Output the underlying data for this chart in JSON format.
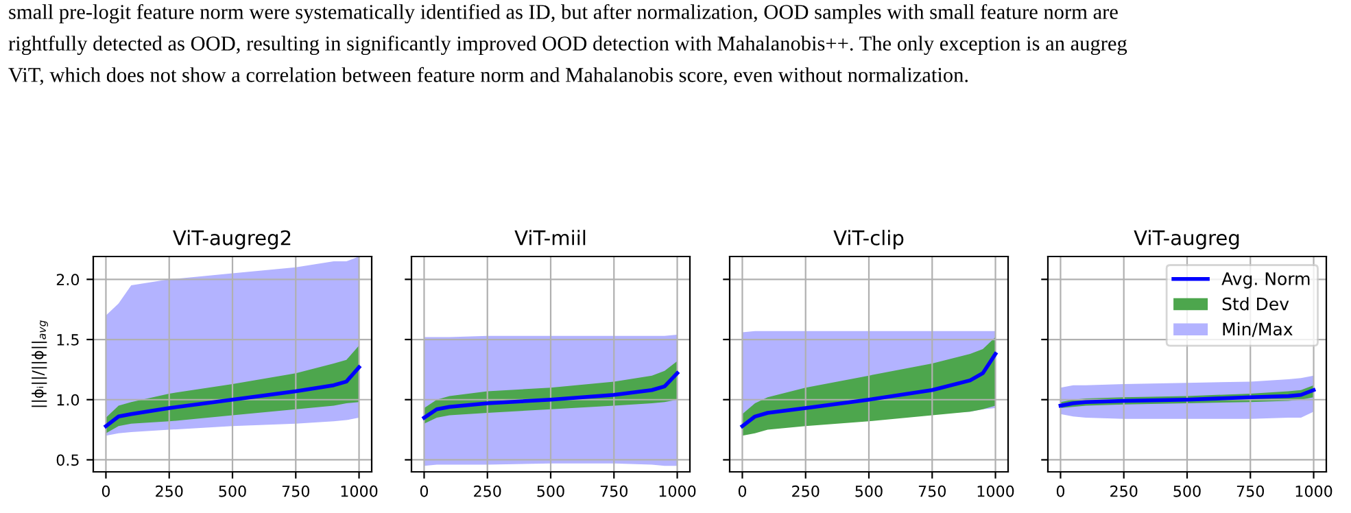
{
  "chart_data": [
    {
      "type": "line",
      "title": "ViT-augreg2",
      "ylabel": "||ϕᵢ||/||ϕ||$_{avg}$",
      "xlim": [
        -50,
        1050
      ],
      "xticks": [
        0,
        250,
        500,
        750,
        1000
      ],
      "ylim": [
        0.4,
        2.19
      ],
      "yticks": [
        0.5,
        {
          "value": 1.0,
          "label": "1.0"
        },
        1.5,
        {
          "value": 2.0,
          "label": "2.0"
        }
      ],
      "grid": true,
      "annotations": [
        "small pre-logit feature norm were systematically identified as ID, but after normalization, OOD samples with small feature norm are",
        "rightfully detected as OOD, resulting in significantly improved OOD detection with Mahalanobis++. The only exception is an augreg",
        "ViT, which does not show a correlation between feature norm and Mahalanobis score, even without normalization."
      ],
      "x": [
        0,
        50,
        100,
        250,
        500,
        750,
        900,
        950,
        1000
      ],
      "series": [
        {
          "color": "#b3b3ff",
          "values": [
            null,
            null,
            null,
            null,
            null,
            null,
            null,
            null,
            null
          ],
          "lower": [
            0.7,
            0.72,
            0.73,
            0.75,
            0.78,
            0.8,
            0.82,
            0.83,
            0.85
          ],
          "upper": [
            1.7,
            1.8,
            1.95,
            2.0,
            2.05,
            2.1,
            2.15,
            2.15,
            2.19
          ]
        },
        {
          "color": "#4da64d",
          "values": [
            null,
            null,
            null,
            null,
            null,
            null,
            null,
            null,
            null
          ],
          "lower": [
            0.72,
            0.78,
            0.8,
            0.82,
            0.87,
            0.92,
            0.95,
            0.97,
            0.98
          ],
          "upper": [
            0.85,
            0.95,
            0.98,
            1.05,
            1.13,
            1.22,
            1.3,
            1.33,
            1.45
          ]
        },
        {
          "color": "#0000ff",
          "values": [
            0.78,
            0.86,
            0.88,
            0.93,
            1.0,
            1.07,
            1.12,
            1.15,
            1.27
          ]
        }
      ]
    },
    {
      "type": "line",
      "title": "ViT-miil",
      "xlim": [
        -50,
        1050
      ],
      "xticks": [
        0,
        250,
        500,
        750,
        1000
      ],
      "ylim": [
        0.4,
        2.19
      ],
      "yticks": [
        {
          "value": 0.5,
          "label": null
        },
        {
          "value": 1.0,
          "label": null
        },
        {
          "value": 1.5,
          "label": null
        },
        {
          "value": 2.0,
          "label": null
        }
      ],
      "grid": true,
      "tick_labels": "x",
      "x": [
        0,
        50,
        100,
        250,
        500,
        750,
        900,
        950,
        1000
      ],
      "series": [
        {
          "color": "#b3b3ff",
          "values": [
            null,
            null,
            null,
            null,
            null,
            null,
            null,
            null,
            null
          ],
          "lower": [
            0.45,
            0.46,
            0.46,
            0.46,
            0.47,
            0.47,
            0.46,
            0.45,
            0.45
          ],
          "upper": [
            1.52,
            1.52,
            1.52,
            1.53,
            1.53,
            1.53,
            1.53,
            1.53,
            1.54
          ]
        },
        {
          "color": "#4da64d",
          "values": [
            null,
            null,
            null,
            null,
            null,
            null,
            null,
            null,
            null
          ],
          "lower": [
            0.8,
            0.85,
            0.87,
            0.89,
            0.92,
            0.95,
            0.97,
            0.98,
            1.0
          ],
          "upper": [
            0.93,
            1.0,
            1.03,
            1.07,
            1.1,
            1.15,
            1.2,
            1.24,
            1.32
          ]
        },
        {
          "color": "#0000ff",
          "values": [
            0.85,
            0.92,
            0.94,
            0.97,
            1.0,
            1.04,
            1.08,
            1.11,
            1.22
          ]
        }
      ]
    },
    {
      "type": "line",
      "title": "ViT-clip",
      "xlim": [
        -50,
        1050
      ],
      "xticks": [
        0,
        250,
        500,
        750,
        1000
      ],
      "ylim": [
        0.4,
        2.19
      ],
      "yticks": [
        {
          "value": 0.5,
          "label": null
        },
        {
          "value": 1.0,
          "label": null
        },
        {
          "value": 1.5,
          "label": null
        },
        {
          "value": 2.0,
          "label": null
        }
      ],
      "grid": true,
      "tick_labels": "x",
      "x": [
        0,
        50,
        100,
        250,
        500,
        750,
        900,
        950,
        1000
      ],
      "series": [
        {
          "color": "#b3b3ff",
          "values": [
            null,
            null,
            null,
            null,
            null,
            null,
            null,
            null,
            null
          ],
          "lower": [
            0.72,
            0.74,
            0.76,
            0.79,
            0.83,
            0.88,
            0.9,
            0.92,
            0.93
          ],
          "upper": [
            1.56,
            1.57,
            1.57,
            1.57,
            1.57,
            1.57,
            1.57,
            1.57,
            1.57
          ]
        },
        {
          "color": "#4da64d",
          "values": [
            null,
            null,
            null,
            null,
            null,
            null,
            null,
            null,
            null
          ],
          "lower": [
            0.7,
            0.72,
            0.75,
            0.78,
            0.82,
            0.87,
            0.9,
            0.92,
            0.95
          ],
          "upper": [
            0.88,
            0.97,
            1.02,
            1.1,
            1.2,
            1.3,
            1.38,
            1.42,
            1.52
          ]
        },
        {
          "color": "#0000ff",
          "values": [
            0.78,
            0.86,
            0.89,
            0.93,
            1.0,
            1.08,
            1.16,
            1.22,
            1.38
          ]
        }
      ]
    },
    {
      "type": "line",
      "title": "ViT-augreg",
      "xlim": [
        -50,
        1050
      ],
      "xticks": [
        0,
        250,
        500,
        750,
        1000
      ],
      "ylim": [
        0.4,
        2.19
      ],
      "yticks": [
        {
          "value": 0.5,
          "label": null
        },
        {
          "value": 1.0,
          "label": null
        },
        {
          "value": 1.5,
          "label": null
        },
        {
          "value": 2.0,
          "label": null
        }
      ],
      "grid": true,
      "legend": "top right",
      "tick_labels": "x",
      "x": [
        0,
        50,
        100,
        250,
        500,
        750,
        900,
        950,
        1000
      ],
      "series": [
        {
          "name": "Min/Max",
          "color": "#b3b3ff",
          "values": [
            null,
            null,
            null,
            null,
            null,
            null,
            null,
            null,
            null
          ],
          "lower": [
            0.88,
            0.86,
            0.85,
            0.84,
            0.84,
            0.84,
            0.85,
            0.85,
            0.9
          ],
          "upper": [
            1.1,
            1.12,
            1.12,
            1.13,
            1.14,
            1.15,
            1.17,
            1.18,
            1.2
          ]
        },
        {
          "name": "Std Dev",
          "color": "#4da64d",
          "values": [
            null,
            null,
            null,
            null,
            null,
            null,
            null,
            null,
            null
          ],
          "lower": [
            0.93,
            0.94,
            0.95,
            0.96,
            0.97,
            0.98,
            0.99,
            1.0,
            1.02
          ],
          "upper": [
            0.98,
            1.0,
            1.01,
            1.02,
            1.03,
            1.05,
            1.07,
            1.08,
            1.12
          ]
        },
        {
          "name": "Avg. Norm",
          "color": "#0000ff",
          "values": [
            0.95,
            0.97,
            0.98,
            0.99,
            1.0,
            1.02,
            1.03,
            1.04,
            1.08
          ]
        }
      ]
    }
  ]
}
